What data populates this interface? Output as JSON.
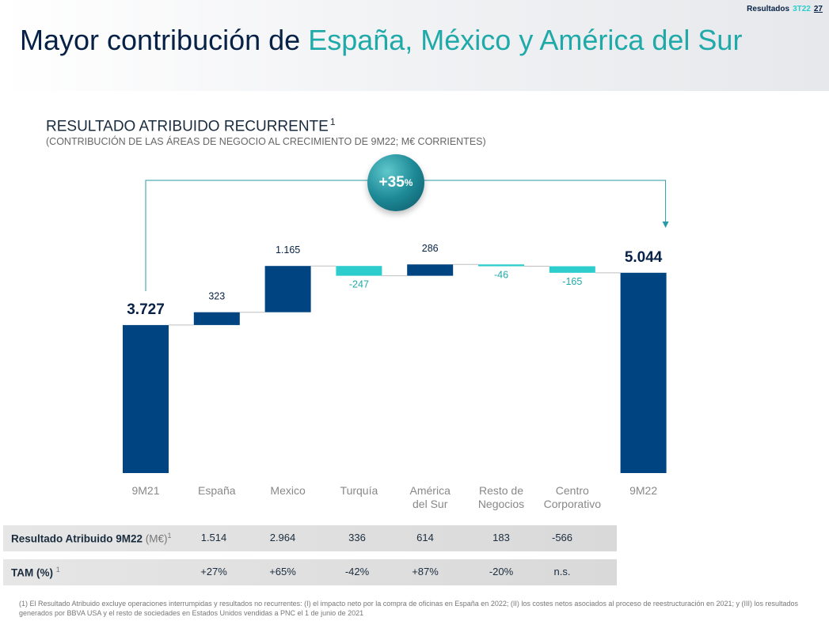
{
  "header": {
    "section_label": "Resultados",
    "quarter": "3T22",
    "page_number": "27",
    "title_main": "Mayor contribución de ",
    "title_highlight": "España, México y América del Sur"
  },
  "chart_header": {
    "title": "RESULTADO ATRIBUIDO RECURRENTE",
    "title_note": "1",
    "subtitle": "(CONTRIBUCIÓN DE LAS ÁREAS DE NEGOCIO AL CRECIMIENTO DE 9M22; M€ CORRIENTES)"
  },
  "growth_badge": {
    "value": "+35",
    "unit": "%"
  },
  "colors": {
    "dark_blue": "#004481",
    "teal": "#2dcccd",
    "navy_text": "#072146",
    "teal_label": "#1fa9a9"
  },
  "chart_data": {
    "type": "waterfall",
    "title": "RESULTADO ATRIBUIDO RECURRENTE",
    "categories": [
      "9M21",
      "España",
      "Mexico",
      "Turquía",
      "América del Sur",
      "Resto de Negocios",
      "Centro Corporativo",
      "9M22"
    ],
    "category_lines": [
      [
        "9M21"
      ],
      [
        "España"
      ],
      [
        "Mexico"
      ],
      [
        "Turquía"
      ],
      [
        "América",
        "del Sur"
      ],
      [
        "Resto de",
        "Negocios"
      ],
      [
        "Centro",
        "Corporativo"
      ],
      [
        "9M22"
      ]
    ],
    "values": [
      3727,
      323,
      1165,
      -247,
      286,
      -46,
      -165,
      5044
    ],
    "value_labels": [
      "3.727",
      "323",
      "1.165",
      "-247",
      "286",
      "-46",
      "-165",
      "5.044"
    ],
    "kinds": [
      "total",
      "delta",
      "delta",
      "delta",
      "delta",
      "delta",
      "delta",
      "total"
    ],
    "unit": "M€ corrientes"
  },
  "table": {
    "row1_label": "Resultado Atribuido 9M22",
    "row1_unit": "(M€)",
    "row1_note": "1",
    "row1_values": [
      "1.514",
      "2.964",
      "336",
      "614",
      "183",
      "-566"
    ],
    "row2_label": "TAM (%)",
    "row2_note": "1",
    "row2_values": [
      "+27%",
      "+65%",
      "-42%",
      "+87%",
      "-20%",
      "n.s."
    ]
  },
  "footnote": "(1) El Resultado Atribuido excluye operaciones interrumpidas y resultados no recurrentes: (I) el impacto neto por la compra de oficinas en España en 2022; (II) los costes netos asociados al proceso de reestructuración en 2021; y (III) los resultados generados por BBVA USA y el resto de sociedades en Estados Unidos vendidas a PNC el 1 de junio de 2021"
}
